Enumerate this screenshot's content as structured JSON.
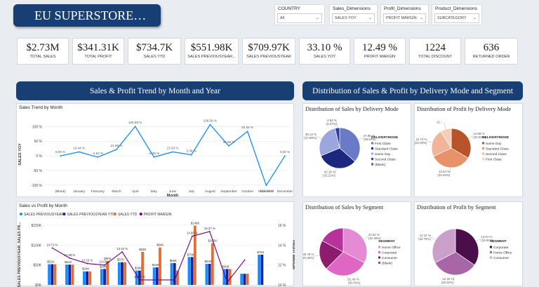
{
  "app_title": "EU SUPERSTORE…",
  "filters": [
    {
      "label": "COUNTRY",
      "value": "All"
    },
    {
      "label": "Sales_Dimensions",
      "value": "SALES YOY"
    },
    {
      "label": "Profit_Dimensions",
      "value": "PROFIT MARGIN"
    },
    {
      "label": "Product_Dimensions",
      "value": "SUBCATEGORY"
    }
  ],
  "kpis": [
    {
      "value": "$2.73M",
      "label": "TOTAL SALES"
    },
    {
      "value": "$341.31K",
      "label": "TOTAL PROFIT"
    },
    {
      "value": "$734.7K",
      "label": "SALES YTD"
    },
    {
      "value": "$551.98K",
      "label": "SALES PREVIOUSYEAR..."
    },
    {
      "value": "$709.97K",
      "label": "SALES PREVIOUSYEAR"
    },
    {
      "value": "33.10 %",
      "label": "SALES YOY"
    },
    {
      "value": "12.49 %",
      "label": "PROFIT MARGIN"
    },
    {
      "value": "1224",
      "label": "TOTAL DISCOUNT"
    },
    {
      "value": "636",
      "label": "RETURNED ORDER"
    }
  ],
  "banners": {
    "left": "Sales & Profit Trend by Month and Year",
    "right": "Distribution of Sales & Profit by Delivery Mode and Segment"
  },
  "trend": {
    "title": "Sales Trend by Month",
    "xlabel": "Month",
    "ylabel": "SALES YOY",
    "categories": [
      "(Blank)",
      "January",
      "February",
      "March",
      "April",
      "May",
      "June",
      "July",
      "August",
      "September",
      "October",
      "November",
      "December"
    ],
    "values": [
      0,
      13.44,
      -4.52,
      21.69,
      100.59,
      -4.36,
      13.53,
      3.38,
      106.58,
      33.65,
      83.59,
      -101.14,
      0
    ],
    "labels": [
      "0.00 %",
      "13.44 %",
      "-4.52 %",
      "21.69 %",
      "100.59 %",
      "-4.36 %",
      "13.53 %",
      "3.38 %",
      "106.58 %",
      "33.65 %",
      "83.59 %",
      "-101.14 %",
      "0.00 %"
    ],
    "yticks": [
      "100 %",
      "50 %",
      "0 %",
      "-50 %",
      "-100 %"
    ],
    "ylim": [
      -110,
      120
    ]
  },
  "combo": {
    "title": "Sales vs Profit by Month",
    "legend": [
      "SALES PREVIOUSYEAR",
      "SALES PREVIOUSYEAR YTD",
      "SALES YTD",
      "PROFIT MARGIN"
    ],
    "ylabel": "SALES PREVIOUSYEAR, SALES PR...",
    "y2label": "PROFIT MARGIN",
    "yticks": [
      "$150K",
      "$100K",
      "$50K",
      "$0K"
    ],
    "y2ticks": [
      "16 %",
      "14 %",
      "12 %",
      "10 %"
    ],
    "colors": [
      "#118dff",
      "#12239e",
      "#e66c37",
      "#6b007b"
    ],
    "groups": [
      {
        "a": 52,
        "b": 52,
        "c": 52,
        "la": "$52K"
      },
      {
        "a": 51,
        "b": 51,
        "c": 51,
        "la": "$51K"
      },
      {
        "a": 34,
        "b": 34,
        "c": 34,
        "la": "$34K"
      },
      {
        "a": 40,
        "b": 40,
        "c": 60,
        "la": "$40K",
        "lc": "$60K"
      },
      {
        "a": 57,
        "b": 57,
        "c": 57,
        "la": "$57K"
      },
      {
        "a": 36,
        "b": 36,
        "c": 83,
        "la": "$36K",
        "lc": "$83K"
      },
      {
        "a": 44,
        "b": 44,
        "c": 94,
        "la": "$44K",
        "lc": "$94K"
      },
      {
        "a": 55,
        "b": 55,
        "c": 36,
        "la": "$55K"
      },
      {
        "a": 70,
        "b": 70,
        "c": 149,
        "la": "$70K",
        "lc": "$149K"
      },
      {
        "a": 53,
        "b": 53,
        "c": 105,
        "la": "$53K",
        "lc": "$105K"
      },
      {
        "a": 40,
        "b": 40,
        "c": 40,
        "la": "$40K"
      },
      {
        "a": 28,
        "b": 28,
        "c": 28,
        "la": ""
      },
      {
        "a": 76,
        "b": 76,
        "c": 0,
        "la": "$76K"
      }
    ],
    "margin": [
      13.71,
      12.69,
      12.15,
      12.0,
      13.32,
      10.5,
      10.5,
      10.5,
      14.9,
      15.37,
      10.25,
      12.5
    ],
    "margin_labels": [
      "13.71 %",
      "12.69 %",
      "12.15 %",
      "12.00 %",
      "13.32 %",
      "10.50 %",
      "",
      "",
      "14.90 %",
      "15.37 %",
      "",
      ""
    ]
  },
  "pies": [
    {
      "title": "Distribution of Sales by Delivery Mode",
      "legend_title": "DELIVERYMODE",
      "colors": [
        "#6a7ac6",
        "#1c2880",
        "#9aa6dd",
        "#2d3cb0",
        "#4a5cd0"
      ],
      "legend": [
        "First Class",
        "Standard Class",
        "Same Day",
        "Second Class",
        "(Blank)"
      ],
      "values": [
        36.54,
        32.21,
        27.58,
        3.67,
        0.001
      ],
      "callouts": [
        "47.85 % (36.54%)",
        "42.18 % (32.21%)",
        "36.12 % (27.58%)",
        "4.83 % (3.67%)"
      ]
    },
    {
      "title": "Distribution of Profit by Delivery Mode",
      "legend_title": "DELIVERYMODE",
      "colors": [
        "#b8532a",
        "#e8926a",
        "#f2b59a",
        "#f6cdb8"
      ],
      "legend": [
        "Same Day",
        "Standard Class",
        "Second Class",
        "First Class"
      ],
      "values": [
        33.52,
        34.54,
        22.93,
        9.01
      ],
      "callouts": [
        "14.58 % (33.52%)",
        "12.54 % (34.54%)",
        "11.72 % (22.93%)",
        "12. ..."
      ]
    },
    {
      "title": "Distribution of Sales by Segment",
      "legend_title": "SEGMENT",
      "colors": [
        "#e58ad4",
        "#e066c4",
        "#8b1c6e",
        "#b7329a"
      ],
      "legend": [
        "Home Office",
        "Corporate",
        "Consumer",
        "(Blank)"
      ],
      "values": [
        32.45,
        30.04,
        20.36,
        17.15
      ],
      "callouts": [
        "42.53 % (32.45%)",
        "31.49 % (30.04%)",
        "30.78 % (20.36%)"
      ]
    },
    {
      "title": "Distribution of Profit by Segment",
      "legend_title": "SEGMENT",
      "colors": [
        "#4a0f4a",
        "#a866a8",
        "#caa0ca"
      ],
      "legend": [
        "Corporate",
        "Home Office",
        "Consumer"
      ],
      "values": [
        34.62,
        32.62,
        32.76
      ],
      "callouts": [
        "13.01 % (34.62%)",
        "12.33 % (32.62%)",
        "12.24 % (32.76%)"
      ]
    }
  ]
}
